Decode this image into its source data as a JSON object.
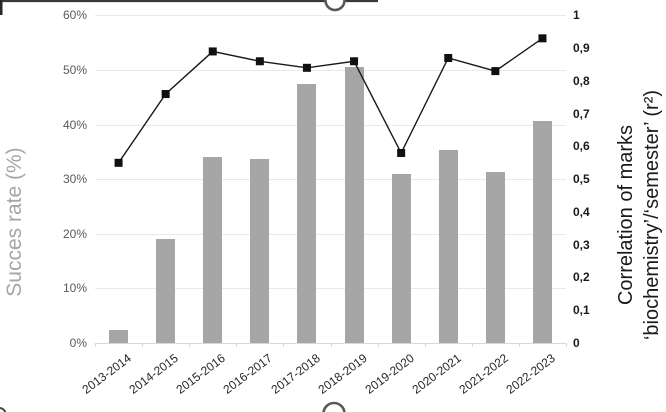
{
  "chart_data": {
    "type": "bar",
    "subtype": "bar+line combo (clustered column with line on secondary axis)",
    "categories": [
      "2013-2014",
      "2014-2015",
      "2015-2016",
      "2016-2017",
      "2017-2018",
      "2018-2019",
      "2019-2020",
      "2020-2021",
      "2021-2022",
      "2022-2023"
    ],
    "series": [
      {
        "name": "Succes rate",
        "type": "bar",
        "axis": "left",
        "unit": "%",
        "color": "#a6a6a6",
        "values": [
          2.4,
          19,
          34,
          33.7,
          47.5,
          50.5,
          31,
          35.4,
          31.4,
          40.7
        ]
      },
      {
        "name": "Correlation of marks biochemistry/semester (r²)",
        "type": "line",
        "axis": "right",
        "color": "#1a1a1a",
        "marker": "black-square",
        "values": [
          0.55,
          0.76,
          0.89,
          0.86,
          0.84,
          0.86,
          0.58,
          0.87,
          0.83,
          0.93
        ]
      }
    ],
    "left_axis": {
      "title": "Succes rate (%)",
      "min": 0,
      "max": 60,
      "ticks": [
        "0%",
        "10%",
        "20%",
        "30%",
        "40%",
        "50%",
        "60%"
      ]
    },
    "right_axis": {
      "title_line1": "Correlation of marks",
      "title_line2": "‘biochemistry’/‘semester’ (r²)",
      "min": 0,
      "max": 1,
      "ticks": [
        "0",
        "0,1",
        "0,2",
        "0,3",
        "0,4",
        "0,5",
        "0,6",
        "0,7",
        "0,8",
        "0,9",
        "1"
      ]
    },
    "grid": "horizontal gridlines at left-axis ticks",
    "legend": "none",
    "colors": {
      "bar": "#a6a6a6",
      "line": "#1a1a1a",
      "gridline": "#e9e9e9",
      "axis": "#d9d9d9",
      "left_tick_text": "#595959",
      "right_tick_text": "#1a1a1a",
      "handle_stroke": "#595959",
      "frame": "#3a3a3a"
    }
  },
  "decorations": {
    "selection_handle_top": "circle resize handle clipped at top edge",
    "selection_handle_bottom": "circle resize handle clipped at bottom edge",
    "frame": "partial dark border line along top edge with corner mark at top-left"
  }
}
